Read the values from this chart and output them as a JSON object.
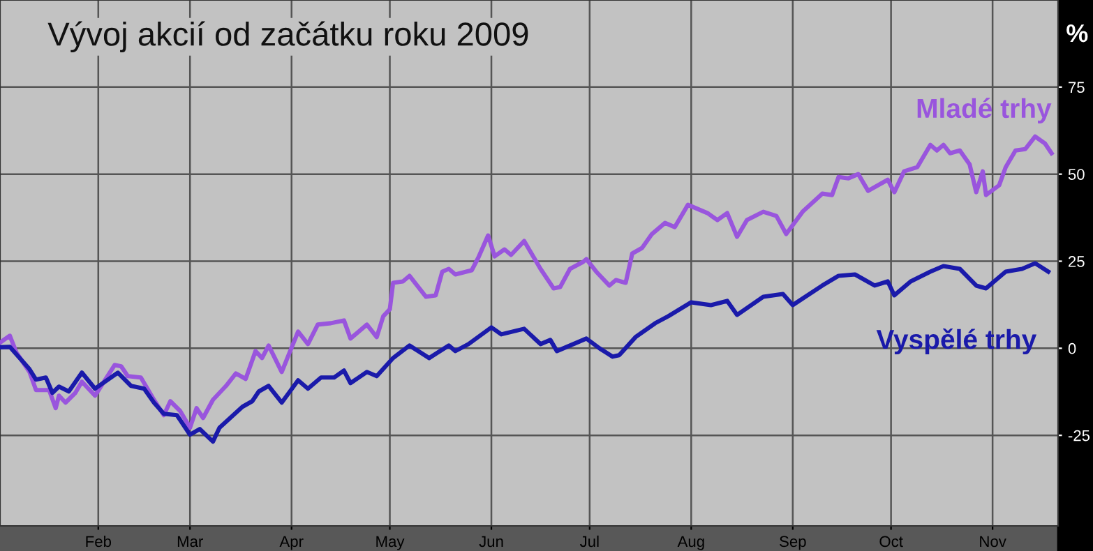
{
  "chart_data": {
    "type": "line",
    "title": "Vývoj akcií od začátku roku 2009",
    "ylabel": "%",
    "xlim": [
      "2009-01-02",
      "2009-11-21"
    ],
    "ylim": [
      -51,
      100
    ],
    "yticks": [
      -25,
      0,
      25,
      50,
      75
    ],
    "xticks": [
      {
        "value": "2009-02-01",
        "label": "Feb"
      },
      {
        "value": "2009-03-01",
        "label": "Mar"
      },
      {
        "value": "2009-04-01",
        "label": "Apr"
      },
      {
        "value": "2009-05-01",
        "label": "May"
      },
      {
        "value": "2009-06-01",
        "label": "Jun"
      },
      {
        "value": "2009-07-01",
        "label": "Jul"
      },
      {
        "value": "2009-08-01",
        "label": "Aug"
      },
      {
        "value": "2009-09-01",
        "label": "Sep"
      },
      {
        "value": "2009-10-01",
        "label": "Oct"
      },
      {
        "value": "2009-11-01",
        "label": "Nov"
      }
    ],
    "grid": true,
    "legend": false,
    "marker": "none",
    "line_style": "solid",
    "series": [
      {
        "name": "Mladé trhy",
        "color": "#9955dd",
        "x": [
          "2009-01-02",
          "2009-01-05",
          "2009-01-07",
          "2009-01-11",
          "2009-01-13",
          "2009-01-17",
          "2009-01-19",
          "2009-01-20",
          "2009-01-22",
          "2009-01-25",
          "2009-01-27",
          "2009-01-31",
          "2009-02-06",
          "2009-02-08",
          "2009-02-10",
          "2009-02-14",
          "2009-02-18",
          "2009-02-21",
          "2009-02-23",
          "2009-02-26",
          "2009-03-01",
          "2009-03-03",
          "2009-03-05",
          "2009-03-08",
          "2009-03-12",
          "2009-03-15",
          "2009-03-18",
          "2009-03-21",
          "2009-03-23",
          "2009-03-25",
          "2009-03-29",
          "2009-04-03",
          "2009-04-06",
          "2009-04-09",
          "2009-04-13",
          "2009-04-17",
          "2009-04-19",
          "2009-04-24",
          "2009-04-27",
          "2009-04-29",
          "2009-05-01",
          "2009-05-02",
          "2009-05-05",
          "2009-05-07",
          "2009-05-12",
          "2009-05-15",
          "2009-05-17",
          "2009-05-19",
          "2009-05-21",
          "2009-05-26",
          "2009-05-28",
          "2009-05-31",
          "2009-06-02",
          "2009-06-05",
          "2009-06-07",
          "2009-06-11",
          "2009-06-16",
          "2009-06-20",
          "2009-06-22",
          "2009-06-25",
          "2009-06-29",
          "2009-06-30",
          "2009-07-03",
          "2009-07-07",
          "2009-07-09",
          "2009-07-12",
          "2009-07-14",
          "2009-07-17",
          "2009-07-20",
          "2009-07-24",
          "2009-07-27",
          "2009-07-31",
          "2009-08-06",
          "2009-08-09",
          "2009-08-12",
          "2009-08-15",
          "2009-08-18",
          "2009-08-23",
          "2009-08-27",
          "2009-08-30",
          "2009-09-04",
          "2009-09-10",
          "2009-09-13",
          "2009-09-15",
          "2009-09-18",
          "2009-09-21",
          "2009-09-24",
          "2009-09-30",
          "2009-10-02",
          "2009-10-05",
          "2009-10-09",
          "2009-10-13",
          "2009-10-15",
          "2009-10-17",
          "2009-10-19",
          "2009-10-22",
          "2009-10-25",
          "2009-10-27",
          "2009-10-29",
          "2009-10-30",
          "2009-11-03",
          "2009-11-05",
          "2009-11-08",
          "2009-11-11",
          "2009-11-14",
          "2009-11-17",
          "2009-11-19"
        ],
        "values": [
          1.6,
          3.6,
          -1.2,
          -6.8,
          -12,
          -12,
          -17.2,
          -13.6,
          -15.6,
          -12.8,
          -9.6,
          -13.6,
          -4.8,
          -5.2,
          -8,
          -8.4,
          -14.8,
          -19.2,
          -15.2,
          -18,
          -22.8,
          -17.2,
          -20,
          -14.8,
          -10.8,
          -7.2,
          -8.8,
          -0.8,
          -2.8,
          0.8,
          -6.8,
          4.8,
          1.2,
          6.8,
          7.2,
          8,
          2.8,
          6.8,
          3.2,
          9.2,
          11.2,
          18.8,
          19.2,
          20.8,
          14.8,
          15.2,
          22,
          22.8,
          21.2,
          22.4,
          26,
          32.4,
          26.4,
          28.4,
          26.8,
          30.8,
          22.8,
          17.2,
          17.6,
          22.8,
          24.8,
          25.6,
          22,
          18,
          19.6,
          18.8,
          27.2,
          28.8,
          32.8,
          36,
          34.8,
          41.2,
          38.8,
          36.8,
          38.8,
          32,
          36.8,
          39.2,
          38,
          32.8,
          39.2,
          44.4,
          44,
          49.2,
          48.8,
          50,
          45.2,
          48.4,
          44.8,
          50.8,
          52,
          58.4,
          56.8,
          58.4,
          56,
          56.8,
          52.8,
          44.8,
          50.8,
          44,
          46.8,
          52,
          56.8,
          57.2,
          60.8,
          58.8,
          56
        ]
      },
      {
        "name": "Vyspělé trhy",
        "color": "#1a1aaa",
        "x": [
          "2009-01-02",
          "2009-01-05",
          "2009-01-08",
          "2009-01-11",
          "2009-01-13",
          "2009-01-16",
          "2009-01-18",
          "2009-01-20",
          "2009-01-23",
          "2009-01-27",
          "2009-01-31",
          "2009-02-07",
          "2009-02-11",
          "2009-02-15",
          "2009-02-18",
          "2009-02-21",
          "2009-02-25",
          "2009-03-01",
          "2009-03-04",
          "2009-03-08",
          "2009-03-10",
          "2009-03-17",
          "2009-03-20",
          "2009-03-22",
          "2009-03-25",
          "2009-03-29",
          "2009-04-03",
          "2009-04-06",
          "2009-04-10",
          "2009-04-14",
          "2009-04-17",
          "2009-04-19",
          "2009-04-24",
          "2009-04-27",
          "2009-05-02",
          "2009-05-07",
          "2009-05-13",
          "2009-05-19",
          "2009-05-21",
          "2009-05-25",
          "2009-06-01",
          "2009-06-04",
          "2009-06-11",
          "2009-06-16",
          "2009-06-19",
          "2009-06-21",
          "2009-06-25",
          "2009-06-30",
          "2009-07-04",
          "2009-07-08",
          "2009-07-10",
          "2009-07-15",
          "2009-07-21",
          "2009-07-25",
          "2009-08-01",
          "2009-08-07",
          "2009-08-12",
          "2009-08-15",
          "2009-08-23",
          "2009-08-29",
          "2009-09-01",
          "2009-09-10",
          "2009-09-15",
          "2009-09-20",
          "2009-09-26",
          "2009-09-30",
          "2009-10-02",
          "2009-10-07",
          "2009-10-13",
          "2009-10-17",
          "2009-10-22",
          "2009-10-27",
          "2009-10-30",
          "2009-11-05",
          "2009-11-10",
          "2009-11-14",
          "2009-11-18"
        ],
        "values": [
          0.3,
          0.4,
          -2.8,
          -6,
          -9,
          -8.4,
          -12.8,
          -11,
          -12.4,
          -7,
          -11.6,
          -7,
          -10.8,
          -11.6,
          -15.6,
          -18.8,
          -19.2,
          -24.8,
          -23.2,
          -26.8,
          -22.8,
          -16.8,
          -15.2,
          -12.4,
          -10.8,
          -15.6,
          -9.2,
          -11.6,
          -8.4,
          -8.4,
          -6.4,
          -10,
          -6.8,
          -8,
          -2.8,
          0.8,
          -2.8,
          0.8,
          -0.8,
          1.2,
          6,
          4,
          5.6,
          1.2,
          2.4,
          -0.8,
          0.8,
          2.8,
          0,
          -2.4,
          -2,
          3.2,
          7.2,
          9.2,
          13.2,
          12.4,
          13.6,
          9.6,
          14.8,
          15.6,
          12.4,
          18,
          20.8,
          21.2,
          18,
          19.2,
          15.2,
          19.2,
          22,
          23.6,
          22.8,
          18,
          17.2,
          22,
          22.8,
          24.4,
          22
        ]
      }
    ]
  }
}
